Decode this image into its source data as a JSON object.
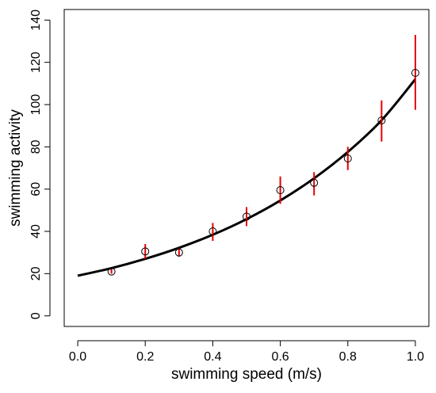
{
  "chart_data": {
    "type": "scatter",
    "title": "",
    "xlabel": "swimming speed (m/s)",
    "ylabel": "swimming activity",
    "xlim": [
      -0.04,
      1.04
    ],
    "ylim": [
      -5,
      145
    ],
    "xticks": [
      0.0,
      0.2,
      0.4,
      0.6,
      0.8,
      1.0
    ],
    "xtick_labels": [
      "0.0",
      "0.2",
      "0.4",
      "0.6",
      "0.8",
      "1.0"
    ],
    "yticks": [
      0,
      20,
      40,
      60,
      80,
      100,
      120,
      140
    ],
    "ytick_labels": [
      "0",
      "20",
      "40",
      "60",
      "80",
      "100",
      "120",
      "140"
    ],
    "grid": false,
    "series": [
      {
        "kind": "points_with_error_bars",
        "marker": "open-circle",
        "color": "#000000",
        "error_color": "#e60000",
        "x": [
          0.1,
          0.2,
          0.3,
          0.4,
          0.5,
          0.6,
          0.7,
          0.8,
          0.9,
          1.0
        ],
        "y": [
          21,
          30.5,
          30,
          40,
          47,
          59.5,
          63,
          74.5,
          92.5,
          115
        ],
        "err_low": [
          20,
          27,
          28,
          35.5,
          42.5,
          53,
          57,
          69,
          82.5,
          97.5
        ],
        "err_high": [
          22,
          34,
          32,
          44,
          51.5,
          66,
          68,
          80,
          102,
          133
        ]
      },
      {
        "kind": "fitted_curve",
        "color": "#000000",
        "x": [
          0.0,
          0.1,
          0.2,
          0.3,
          0.4,
          0.5,
          0.6,
          0.7,
          0.8,
          0.9,
          1.0
        ],
        "y": [
          19,
          22.6,
          27.0,
          32.2,
          38.4,
          45.8,
          54.6,
          65.1,
          77.6,
          92.6,
          112
        ]
      }
    ]
  }
}
